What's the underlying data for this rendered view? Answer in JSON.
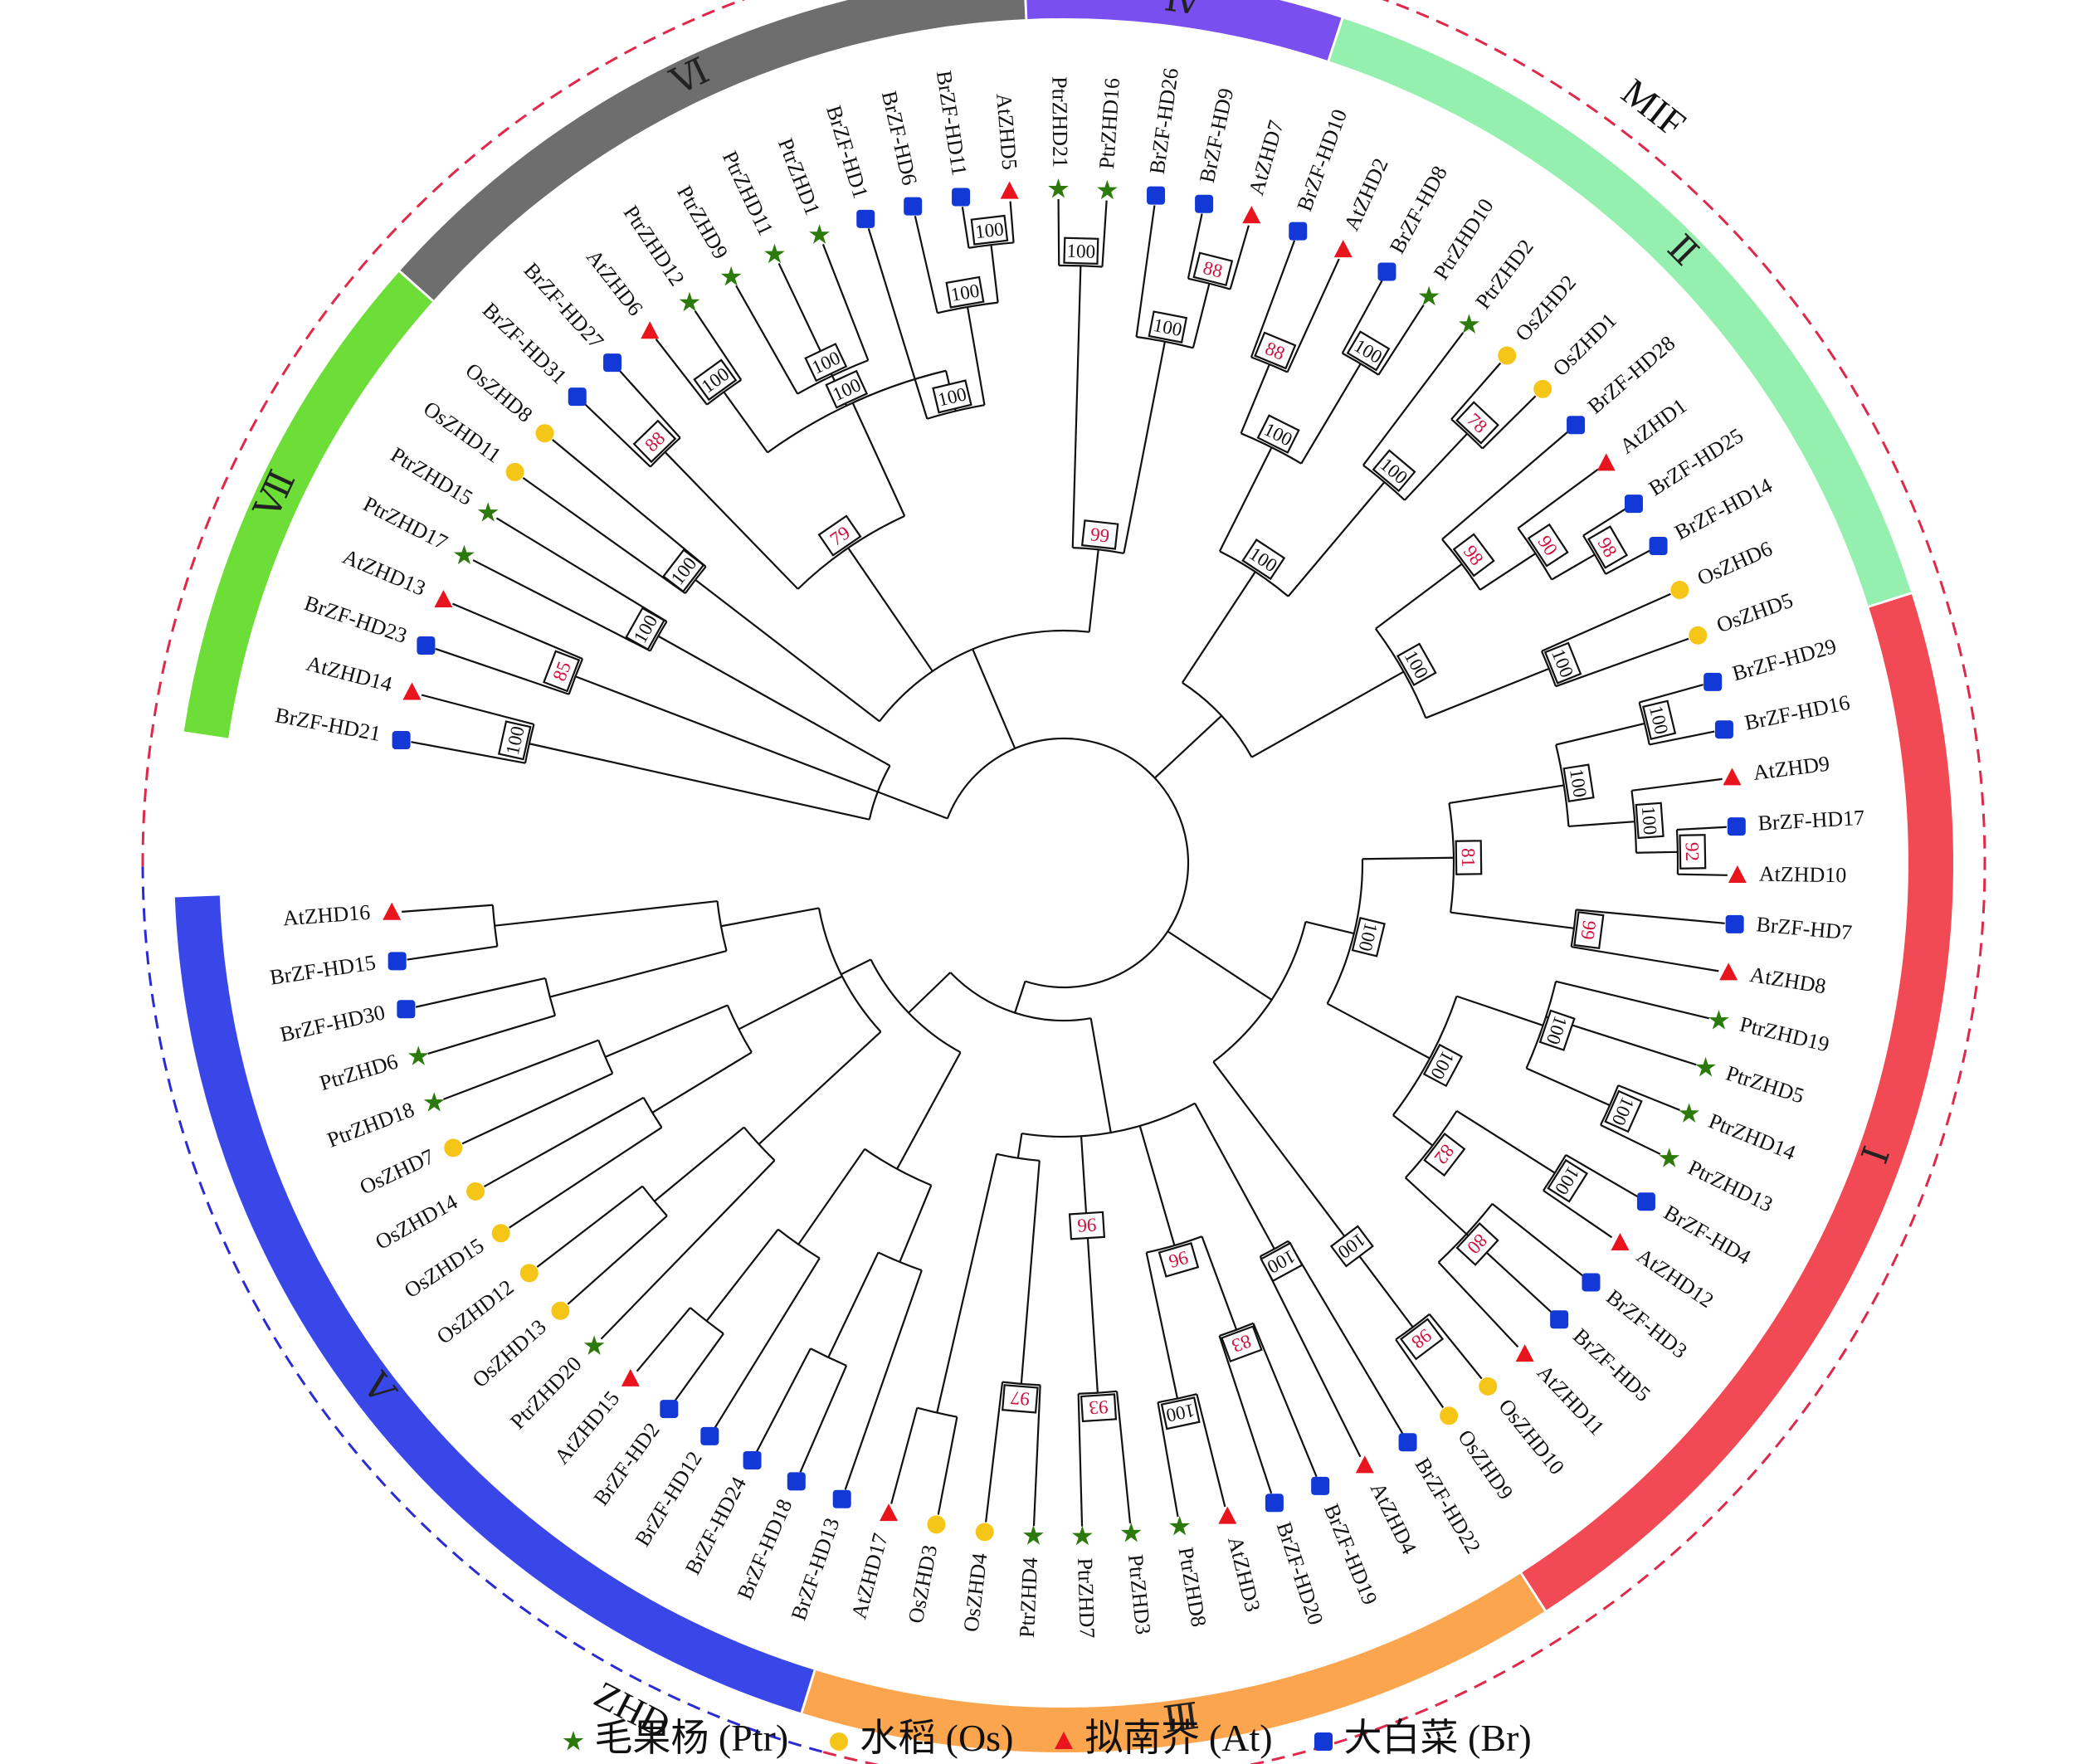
{
  "legend": [
    {
      "symbol": "star",
      "color": "#2b7a0b",
      "label": "毛果杨 (Ptr)"
    },
    {
      "symbol": "circle",
      "color": "#f5c518",
      "label": "水稻 (Os)"
    },
    {
      "symbol": "triangle",
      "color": "#e8141e",
      "label": "拟南芥 (At)"
    },
    {
      "symbol": "square",
      "color": "#1238d6",
      "label": "大白菜 (Br)"
    }
  ],
  "families": [
    {
      "label": "MIF",
      "color": "#2b2bd6"
    },
    {
      "label": "ZHD",
      "color": "#e0284a"
    }
  ],
  "subfamilies": [
    {
      "label": "Ⅰ",
      "color": "#f24a55"
    },
    {
      "label": "Ⅱ",
      "color": "#95efae"
    },
    {
      "label": "Ⅲ",
      "color": "#fba64f"
    },
    {
      "label": "Ⅳ",
      "color": "#7a4ff0"
    },
    {
      "label": "Ⅴ",
      "color": "#3a47e8"
    },
    {
      "label": "Ⅵ",
      "color": "#6e6e6e"
    },
    {
      "label": "Ⅶ",
      "color": "#6ddd37"
    }
  ],
  "leaves": [
    {
      "name": "BrZF-HD21",
      "sp": "Br"
    },
    {
      "name": "AtZHD14",
      "sp": "At"
    },
    {
      "name": "BrZF-HD23",
      "sp": "Br"
    },
    {
      "name": "AtZHD13",
      "sp": "At"
    },
    {
      "name": "PtrZHD17",
      "sp": "Ptr"
    },
    {
      "name": "PtrZHD15",
      "sp": "Ptr"
    },
    {
      "name": "OsZHD11",
      "sp": "Os"
    },
    {
      "name": "OsZHD8",
      "sp": "Os"
    },
    {
      "name": "BrZF-HD31",
      "sp": "Br"
    },
    {
      "name": "BrZF-HD27",
      "sp": "Br"
    },
    {
      "name": "AtZHD6",
      "sp": "At"
    },
    {
      "name": "PtrZHD12",
      "sp": "Ptr"
    },
    {
      "name": "PtrZHD9",
      "sp": "Ptr"
    },
    {
      "name": "PtrZHD11",
      "sp": "Ptr"
    },
    {
      "name": "PtrZHD1",
      "sp": "Ptr"
    },
    {
      "name": "BrZF-HD1",
      "sp": "Br"
    },
    {
      "name": "BrZF-HD6",
      "sp": "Br"
    },
    {
      "name": "BrZF-HD11",
      "sp": "Br"
    },
    {
      "name": "AtZHD5",
      "sp": "At"
    },
    {
      "name": "PtrZHD21",
      "sp": "Ptr"
    },
    {
      "name": "PtrZHD16",
      "sp": "Ptr"
    },
    {
      "name": "BrZF-HD26",
      "sp": "Br"
    },
    {
      "name": "BrZF-HD9",
      "sp": "Br"
    },
    {
      "name": "AtZHD7",
      "sp": "At"
    },
    {
      "name": "BrZF-HD10",
      "sp": "Br"
    },
    {
      "name": "AtZHD2",
      "sp": "At"
    },
    {
      "name": "BrZF-HD8",
      "sp": "Br"
    },
    {
      "name": "PtrZHD10",
      "sp": "Ptr"
    },
    {
      "name": "PtrZHD2",
      "sp": "Ptr"
    },
    {
      "name": "OsZHD2",
      "sp": "Os"
    },
    {
      "name": "OsZHD1",
      "sp": "Os"
    },
    {
      "name": "BrZF-HD28",
      "sp": "Br"
    },
    {
      "name": "AtZHD1",
      "sp": "At"
    },
    {
      "name": "BrZF-HD25",
      "sp": "Br"
    },
    {
      "name": "BrZF-HD14",
      "sp": "Br"
    },
    {
      "name": "OsZHD6",
      "sp": "Os"
    },
    {
      "name": "OsZHD5",
      "sp": "Os"
    },
    {
      "name": "BrZF-HD29",
      "sp": "Br"
    },
    {
      "name": "BrZF-HD16",
      "sp": "Br"
    },
    {
      "name": "AtZHD9",
      "sp": "At"
    },
    {
      "name": "BrZF-HD17",
      "sp": "Br"
    },
    {
      "name": "AtZHD10",
      "sp": "At"
    },
    {
      "name": "BrZF-HD7",
      "sp": "Br"
    },
    {
      "name": "AtZHD8",
      "sp": "At"
    },
    {
      "name": "PtrZHD19",
      "sp": "Ptr"
    },
    {
      "name": "PtrZHD5",
      "sp": "Ptr"
    },
    {
      "name": "PtrZHD14",
      "sp": "Ptr"
    },
    {
      "name": "PtrZHD13",
      "sp": "Ptr"
    },
    {
      "name": "BrZF-HD4",
      "sp": "Br"
    },
    {
      "name": "AtZHD12",
      "sp": "At"
    },
    {
      "name": "BrZF-HD3",
      "sp": "Br"
    },
    {
      "name": "BrZF-HD5",
      "sp": "Br"
    },
    {
      "name": "AtZHD11",
      "sp": "At"
    },
    {
      "name": "OsZHD10",
      "sp": "Os"
    },
    {
      "name": "OsZHD9",
      "sp": "Os"
    },
    {
      "name": "BrZF-HD22",
      "sp": "Br"
    },
    {
      "name": "AtZHD4",
      "sp": "At"
    },
    {
      "name": "BrZF-HD19",
      "sp": "Br"
    },
    {
      "name": "BrZF-HD20",
      "sp": "Br"
    },
    {
      "name": "AtZHD3",
      "sp": "At"
    },
    {
      "name": "PtrZHD8",
      "sp": "Ptr"
    },
    {
      "name": "PtrZHD3",
      "sp": "Ptr"
    },
    {
      "name": "PtrZHD7",
      "sp": "Ptr"
    },
    {
      "name": "PtrZHD4",
      "sp": "Ptr"
    },
    {
      "name": "OsZHD4",
      "sp": "Os"
    },
    {
      "name": "OsZHD3",
      "sp": "Os"
    },
    {
      "name": "AtZHD17",
      "sp": "At"
    },
    {
      "name": "BrZF-HD13",
      "sp": "Br"
    },
    {
      "name": "BrZF-HD18",
      "sp": "Br"
    },
    {
      "name": "BrZF-HD24",
      "sp": "Br"
    },
    {
      "name": "BrZF-HD12",
      "sp": "Br"
    },
    {
      "name": "BrZF-HD2",
      "sp": "Br"
    },
    {
      "name": "AtZHD15",
      "sp": "At"
    },
    {
      "name": "PtrZHD20",
      "sp": "Ptr"
    },
    {
      "name": "OsZHD13",
      "sp": "Os"
    },
    {
      "name": "OsZHD12",
      "sp": "Os"
    },
    {
      "name": "OsZHD15",
      "sp": "Os"
    },
    {
      "name": "OsZHD14",
      "sp": "Os"
    },
    {
      "name": "OsZHD7",
      "sp": "Os"
    },
    {
      "name": "PtrZHD18",
      "sp": "Ptr"
    },
    {
      "name": "PtrZHD6",
      "sp": "Ptr"
    },
    {
      "name": "BrZF-HD30",
      "sp": "Br"
    },
    {
      "name": "BrZF-HD15",
      "sp": "Br"
    },
    {
      "name": "AtZHD16",
      "sp": "At"
    }
  ],
  "bootstraps": [
    "100",
    "85",
    "100",
    "100",
    "88",
    "100",
    "79",
    "100",
    "100",
    "100",
    "100",
    "100",
    "100",
    "99",
    "100",
    "88",
    "88",
    "100",
    "100",
    "100",
    "100",
    "78",
    "98",
    "90",
    "98",
    "100",
    "100",
    "100",
    "100",
    "100",
    "92",
    "81",
    "99",
    "100",
    "100",
    "100",
    "100",
    "100",
    "82",
    "80",
    "98",
    "100",
    "100",
    "83",
    "96",
    "100",
    "93",
    "96",
    "97"
  ]
}
